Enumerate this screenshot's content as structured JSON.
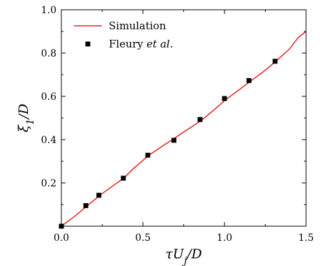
{
  "chart_data": {
    "type": "line",
    "xlabel": "τU_j/D",
    "ylabel": "ξ_1/D",
    "xlim": [
      0.0,
      1.5
    ],
    "ylim": [
      0.0,
      1.0
    ],
    "x_ticks": [
      0.0,
      0.5,
      1.0,
      1.5
    ],
    "x_tick_labels": [
      "0.0",
      "0.5",
      "1.0",
      "1.5"
    ],
    "y_ticks": [
      0.2,
      0.4,
      0.6,
      0.8,
      1.0
    ],
    "y_tick_labels": [
      "0.2",
      "0.4",
      "0.6",
      "0.8",
      "1.0"
    ],
    "grid": false,
    "legend_position": "top-left",
    "series": [
      {
        "name": "Simulation",
        "kind": "line",
        "color": "#e8201f",
        "x": [
          0.0,
          0.08,
          0.16,
          0.24,
          0.3,
          0.38,
          0.44,
          0.54,
          0.62,
          0.7,
          0.78,
          0.86,
          0.94,
          1.0,
          1.08,
          1.16,
          1.24,
          1.32,
          1.4,
          1.45,
          1.5
        ],
        "y": [
          0.0,
          0.045,
          0.095,
          0.145,
          0.178,
          0.22,
          0.265,
          0.33,
          0.37,
          0.41,
          0.45,
          0.49,
          0.54,
          0.58,
          0.625,
          0.67,
          0.715,
          0.765,
          0.82,
          0.87,
          0.9
        ]
      },
      {
        "name": "Fleury",
        "name_suffix": " et al.",
        "kind": "scatter",
        "color": "#000000",
        "x": [
          0.0,
          0.15,
          0.23,
          0.38,
          0.53,
          0.69,
          0.85,
          1.0,
          1.15,
          1.31
        ],
        "y": [
          0.0,
          0.095,
          0.143,
          0.222,
          0.328,
          0.397,
          0.493,
          0.59,
          0.673,
          0.762
        ]
      }
    ]
  }
}
